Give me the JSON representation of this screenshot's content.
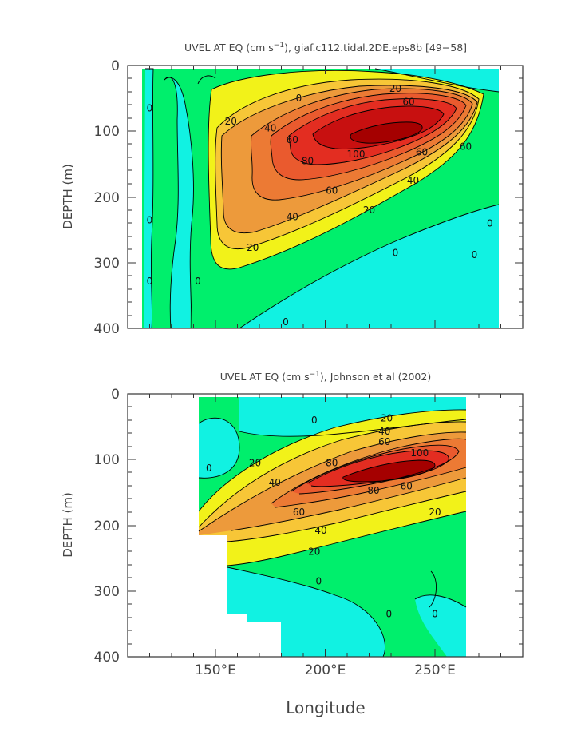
{
  "chart_data": [
    {
      "type": "heatmap",
      "title": "UVEL AT EQ (cm s",
      "title_sup": "−1",
      "title_rest": "), giaf.c112.tidal.2DE.eps8b [49−58]",
      "ylabel": "DEPTH (m)",
      "y_ticks": [
        "0",
        "100",
        "200",
        "300",
        "400"
      ],
      "ylim": [
        400,
        0
      ],
      "xlim": [
        110,
        290
      ],
      "x_range_data": [
        117,
        280
      ],
      "core": {
        "lon": 225,
        "depth": 115,
        "max": 110
      },
      "contour_levels": [
        0,
        20,
        40,
        60,
        80,
        100
      ],
      "contour_labels": [
        {
          "text": "0",
          "lon": 188,
          "depth": 55
        },
        {
          "text": "0",
          "lon": 120,
          "depth": 70
        },
        {
          "text": "0",
          "lon": 120,
          "depth": 240
        },
        {
          "text": "0",
          "lon": 275,
          "depth": 245
        },
        {
          "text": "0",
          "lon": 232,
          "depth": 290
        },
        {
          "text": "0",
          "lon": 182,
          "depth": 395
        },
        {
          "text": "0",
          "lon": 120,
          "depth": 333
        },
        {
          "text": "0",
          "lon": 142,
          "depth": 333
        },
        {
          "text": "0",
          "lon": 268,
          "depth": 293
        },
        {
          "text": "20",
          "lon": 232,
          "depth": 40
        },
        {
          "text": "20",
          "lon": 157,
          "depth": 90
        },
        {
          "text": "20",
          "lon": 220,
          "depth": 225
        },
        {
          "text": "20",
          "lon": 167,
          "depth": 282
        },
        {
          "text": "40",
          "lon": 175,
          "depth": 100
        },
        {
          "text": "40",
          "lon": 240,
          "depth": 180
        },
        {
          "text": "40",
          "lon": 185,
          "depth": 235
        },
        {
          "text": "60",
          "lon": 238,
          "depth": 60
        },
        {
          "text": "60",
          "lon": 185,
          "depth": 118
        },
        {
          "text": "60",
          "lon": 244,
          "depth": 137
        },
        {
          "text": "60",
          "lon": 264,
          "depth": 128
        },
        {
          "text": "60",
          "lon": 203,
          "depth": 195
        },
        {
          "text": "80",
          "lon": 192,
          "depth": 150
        },
        {
          "text": "100",
          "lon": 214,
          "depth": 140
        }
      ]
    },
    {
      "type": "heatmap",
      "title": "UVEL AT EQ (cm s",
      "title_sup": "−1",
      "title_rest": "), Johnson et al (2002)",
      "ylabel": "DEPTH (m)",
      "xlabel": "Longitude",
      "x_ticks": [
        "150°E",
        "200°E",
        "250°E"
      ],
      "x_tick_values": [
        150,
        200,
        250
      ],
      "y_ticks": [
        "0",
        "100",
        "200",
        "300",
        "400"
      ],
      "ylim": [
        400,
        0
      ],
      "xlim": [
        110,
        290
      ],
      "x_range_data": [
        143,
        265
      ],
      "core": {
        "lon": 230,
        "depth": 105,
        "max": 105
      },
      "contour_levels": [
        0,
        20,
        40,
        60,
        80,
        100
      ],
      "contour_labels": [
        {
          "text": "0",
          "lon": 195,
          "depth": 45
        },
        {
          "text": "0",
          "lon": 147,
          "depth": 118
        },
        {
          "text": "0",
          "lon": 197,
          "depth": 290
        },
        {
          "text": "0",
          "lon": 229,
          "depth": 340
        },
        {
          "text": "0",
          "lon": 250,
          "depth": 340
        },
        {
          "text": "20",
          "lon": 228,
          "depth": 42
        },
        {
          "text": "20",
          "lon": 168,
          "depth": 110
        },
        {
          "text": "20",
          "lon": 195,
          "depth": 245
        },
        {
          "text": "20",
          "lon": 250,
          "depth": 185
        },
        {
          "text": "40",
          "lon": 227,
          "depth": 62
        },
        {
          "text": "40",
          "lon": 177,
          "depth": 140
        },
        {
          "text": "40",
          "lon": 198,
          "depth": 213
        },
        {
          "text": "60",
          "lon": 227,
          "depth": 78
        },
        {
          "text": "60",
          "lon": 188,
          "depth": 185
        },
        {
          "text": "60",
          "lon": 237,
          "depth": 145
        },
        {
          "text": "80",
          "lon": 203,
          "depth": 110
        },
        {
          "text": "80",
          "lon": 222,
          "depth": 152
        },
        {
          "text": "100",
          "lon": 243,
          "depth": 95
        }
      ]
    }
  ]
}
